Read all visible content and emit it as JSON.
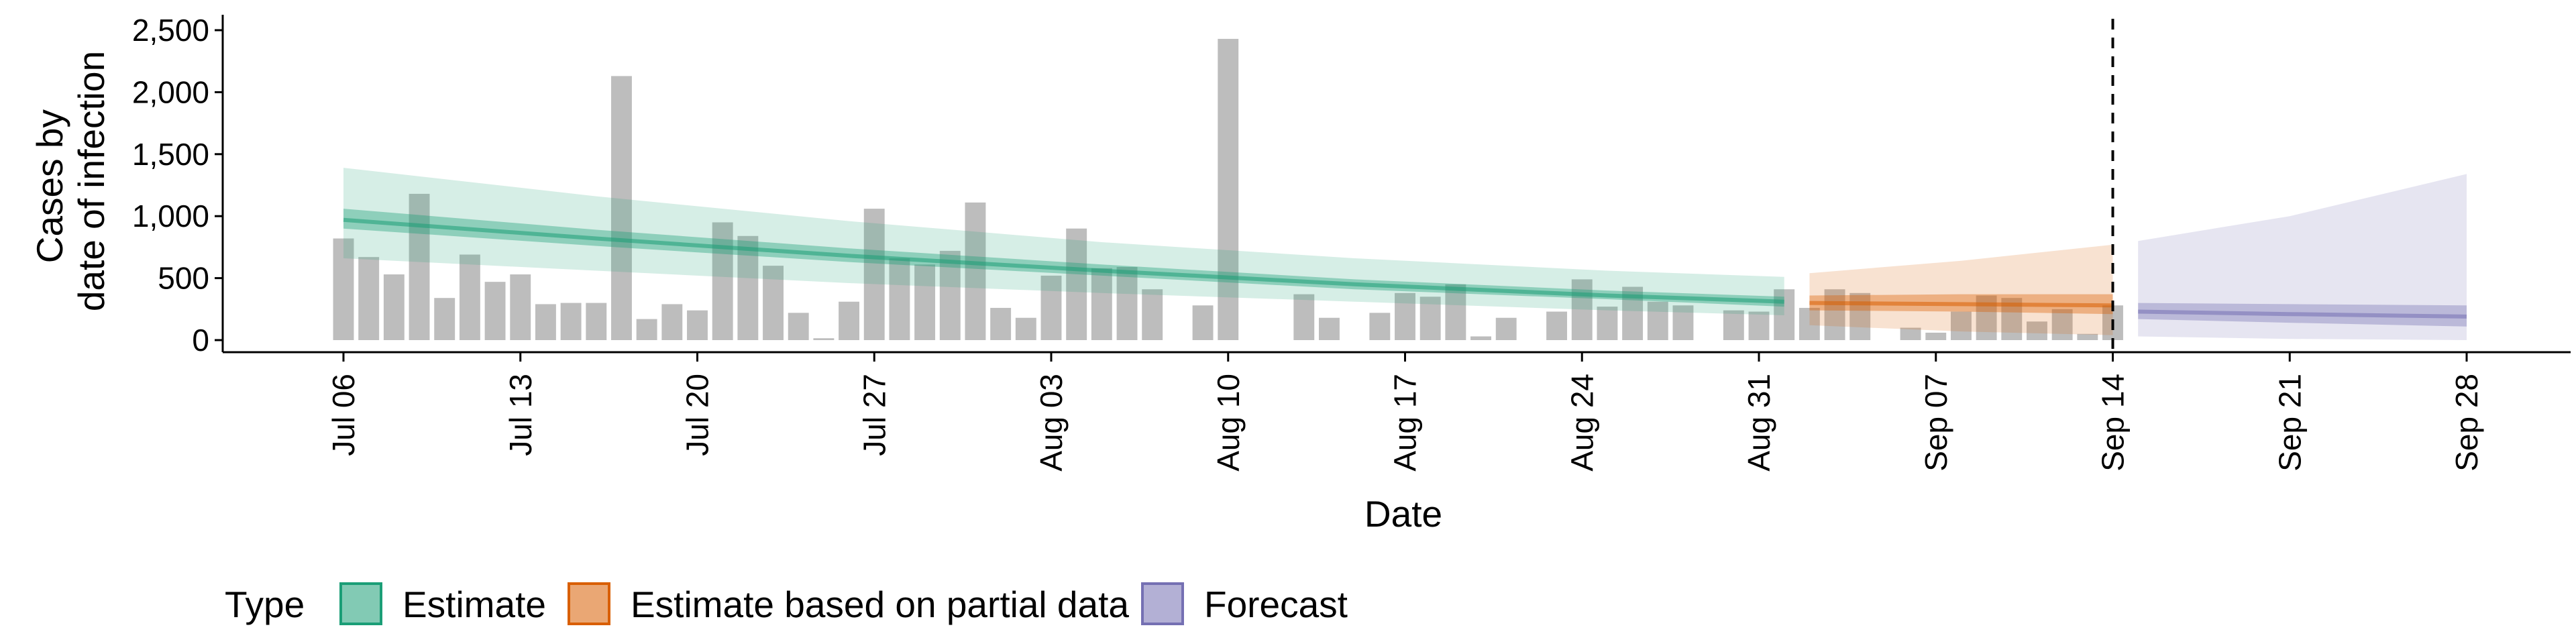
{
  "chart_data": {
    "type": "bar",
    "xlabel": "Date",
    "ylabel": [
      "Cases by",
      "date of infection"
    ],
    "ylim": [
      0,
      2500
    ],
    "yticks": [
      0,
      500,
      1000,
      1500,
      2000,
      2500
    ],
    "ytick_labels": [
      "0",
      "500",
      "1,000",
      "1,500",
      "2,000",
      "2,500"
    ],
    "x_range": [
      "2020-07-06",
      "2020-09-28"
    ],
    "xticks": [
      "2020-07-06",
      "2020-07-13",
      "2020-07-20",
      "2020-07-27",
      "2020-08-03",
      "2020-08-10",
      "2020-08-17",
      "2020-08-24",
      "2020-08-31",
      "2020-09-07",
      "2020-09-14",
      "2020-09-21",
      "2020-09-28"
    ],
    "xtick_labels": [
      "Jul 06",
      "Jul 13",
      "Jul 20",
      "Jul 27",
      "Aug 03",
      "Aug 10",
      "Aug 17",
      "Aug 24",
      "Aug 31",
      "Sep 07",
      "Sep 14",
      "Sep 21",
      "Sep 28"
    ],
    "vline_date": "2020-09-14",
    "vline_style": "dashed",
    "legend_title": "Type",
    "legend_position": "bottom",
    "grid": false,
    "bar_color": "#bdbdbd",
    "observed_cases": {
      "dates": [
        "2020-07-06",
        "2020-07-07",
        "2020-07-08",
        "2020-07-09",
        "2020-07-10",
        "2020-07-11",
        "2020-07-12",
        "2020-07-13",
        "2020-07-14",
        "2020-07-15",
        "2020-07-16",
        "2020-07-17",
        "2020-07-18",
        "2020-07-19",
        "2020-07-20",
        "2020-07-21",
        "2020-07-22",
        "2020-07-23",
        "2020-07-24",
        "2020-07-25",
        "2020-07-26",
        "2020-07-27",
        "2020-07-28",
        "2020-07-29",
        "2020-07-30",
        "2020-07-31",
        "2020-08-01",
        "2020-08-02",
        "2020-08-03",
        "2020-08-04",
        "2020-08-05",
        "2020-08-06",
        "2020-08-07",
        "2020-08-08",
        "2020-08-09",
        "2020-08-10",
        "2020-08-11",
        "2020-08-12",
        "2020-08-13",
        "2020-08-14",
        "2020-08-15",
        "2020-08-16",
        "2020-08-17",
        "2020-08-18",
        "2020-08-19",
        "2020-08-20",
        "2020-08-21",
        "2020-08-22",
        "2020-08-23",
        "2020-08-24",
        "2020-08-25",
        "2020-08-26",
        "2020-08-27",
        "2020-08-28",
        "2020-08-29",
        "2020-08-30",
        "2020-08-31",
        "2020-09-01",
        "2020-09-02",
        "2020-09-03",
        "2020-09-04",
        "2020-09-05",
        "2020-09-06",
        "2020-09-07",
        "2020-09-08",
        "2020-09-09",
        "2020-09-10",
        "2020-09-11",
        "2020-09-12",
        "2020-09-13",
        "2020-09-14"
      ],
      "values": [
        820,
        670,
        530,
        1180,
        340,
        690,
        470,
        530,
        290,
        300,
        300,
        2130,
        170,
        290,
        240,
        950,
        840,
        600,
        220,
        15,
        310,
        1060,
        660,
        610,
        720,
        1110,
        260,
        180,
        520,
        900,
        580,
        590,
        410,
        0,
        280,
        2430,
        0,
        0,
        370,
        180,
        0,
        220,
        380,
        350,
        450,
        30,
        180,
        0,
        230,
        490,
        270,
        430,
        310,
        280,
        0,
        240,
        230,
        410,
        260,
        410,
        380,
        0,
        100,
        60,
        230,
        360,
        340,
        150,
        250,
        50,
        280
      ]
    },
    "series": [
      {
        "name": "Estimate",
        "color": "#1b9e77",
        "dates": [
          "2020-07-06",
          "2020-07-16",
          "2020-07-26",
          "2020-08-05",
          "2020-08-15",
          "2020-08-25",
          "2020-09-01"
        ],
        "median": [
          970,
          820,
          680,
          560,
          450,
          360,
          310
        ],
        "inner_lower": [
          900,
          760,
          630,
          520,
          410,
          330,
          270
        ],
        "inner_upper": [
          1060,
          890,
          740,
          610,
          490,
          400,
          350
        ],
        "outer_lower": [
          660,
          560,
          460,
          380,
          310,
          240,
          200
        ],
        "outer_upper": [
          1390,
          1160,
          960,
          790,
          660,
          560,
          510
        ]
      },
      {
        "name": "Estimate based on partial data",
        "color": "#d95f02",
        "dates": [
          "2020-09-02",
          "2020-09-08",
          "2020-09-14"
        ],
        "median": [
          300,
          290,
          280
        ],
        "inner_lower": [
          240,
          230,
          210
        ],
        "inner_upper": [
          360,
          370,
          370
        ],
        "outer_lower": [
          120,
          70,
          40
        ],
        "outer_upper": [
          540,
          640,
          770
        ]
      },
      {
        "name": "Forecast",
        "color": "#7570b3",
        "dates": [
          "2020-09-15",
          "2020-09-21",
          "2020-09-28"
        ],
        "median": [
          230,
          210,
          190
        ],
        "inner_lower": [
          170,
          140,
          110
        ],
        "inner_upper": [
          300,
          290,
          280
        ],
        "outer_lower": [
          30,
          10,
          0
        ],
        "outer_upper": [
          800,
          1000,
          1340
        ]
      }
    ]
  }
}
